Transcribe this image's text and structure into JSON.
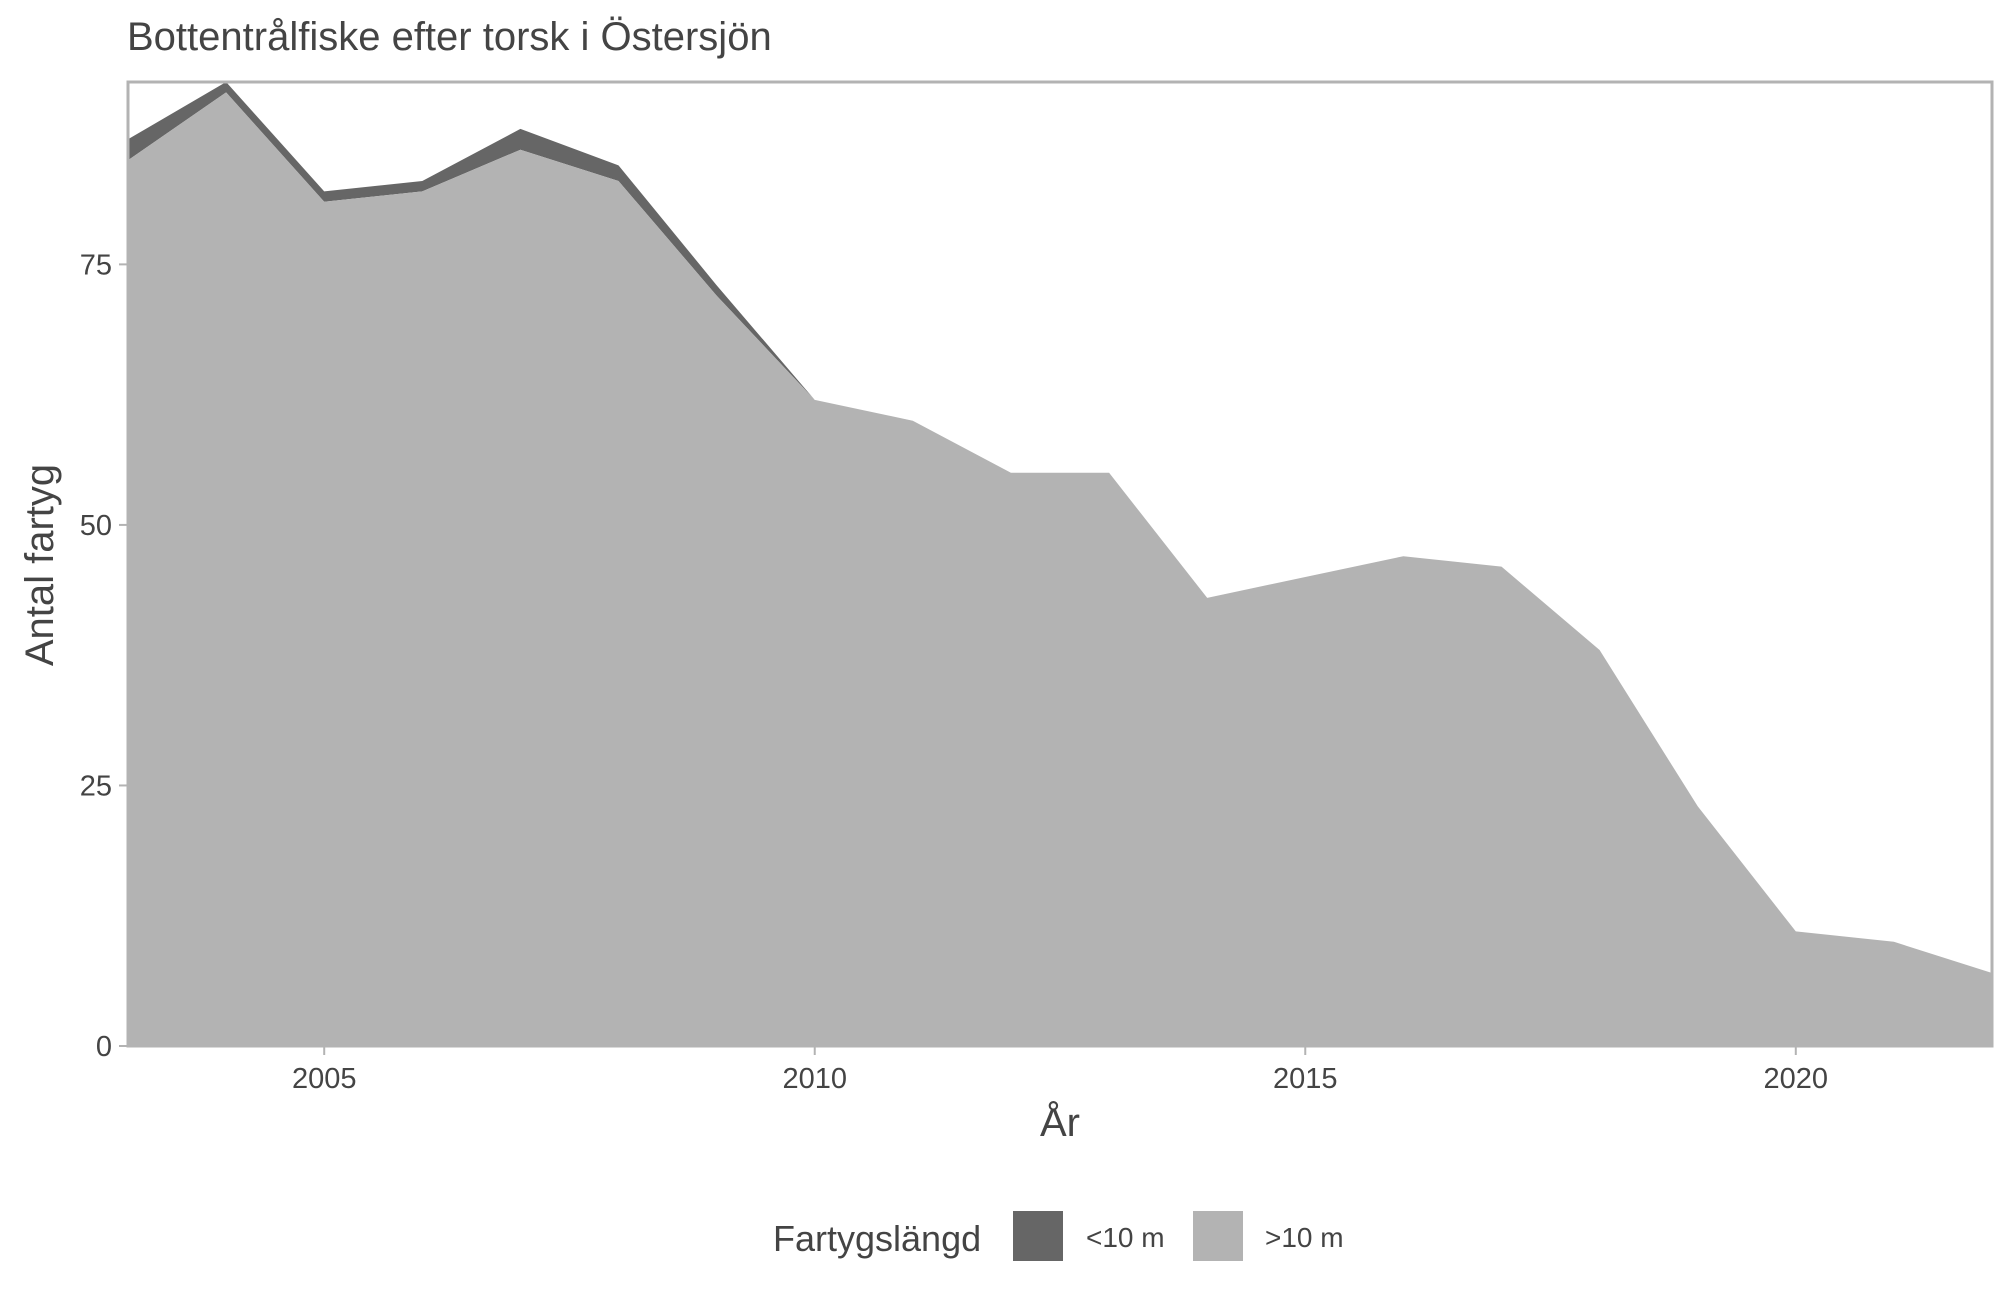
{
  "chart_data": {
    "type": "area",
    "stacked": true,
    "title": "Bottentrålfiske efter torsk i Östersjön",
    "xlabel": "År",
    "ylabel": "Antal fartyg",
    "x": [
      2003,
      2004,
      2005,
      2006,
      2007,
      2008,
      2009,
      2010,
      2011,
      2012,
      2013,
      2014,
      2015,
      2016,
      2017,
      2018,
      2019,
      2020,
      2021,
      2022
    ],
    "xlim": [
      2003,
      2022
    ],
    "ylim": [
      0,
      92.5
    ],
    "x_ticks": [
      2005,
      2010,
      2015,
      2020
    ],
    "y_ticks": [
      0,
      25,
      50,
      75
    ],
    "grid": false,
    "legend": {
      "title": "Fartygslängd",
      "position": "bottom"
    },
    "series": [
      {
        "name": ">10 m",
        "color": "#b3b3b3",
        "values": [
          85,
          91.5,
          81,
          82,
          86,
          83,
          72,
          62,
          60,
          55,
          55,
          43,
          45,
          47,
          46,
          38,
          23,
          11,
          10,
          7
        ]
      },
      {
        "name": "<10 m",
        "color": "#666666",
        "values": [
          2,
          1,
          1,
          1,
          2,
          1.5,
          1,
          0,
          0,
          0,
          0,
          0,
          0,
          0,
          0,
          0,
          0,
          0,
          0,
          0
        ]
      }
    ],
    "legend_order": [
      "<10 m",
      ">10 m"
    ]
  }
}
